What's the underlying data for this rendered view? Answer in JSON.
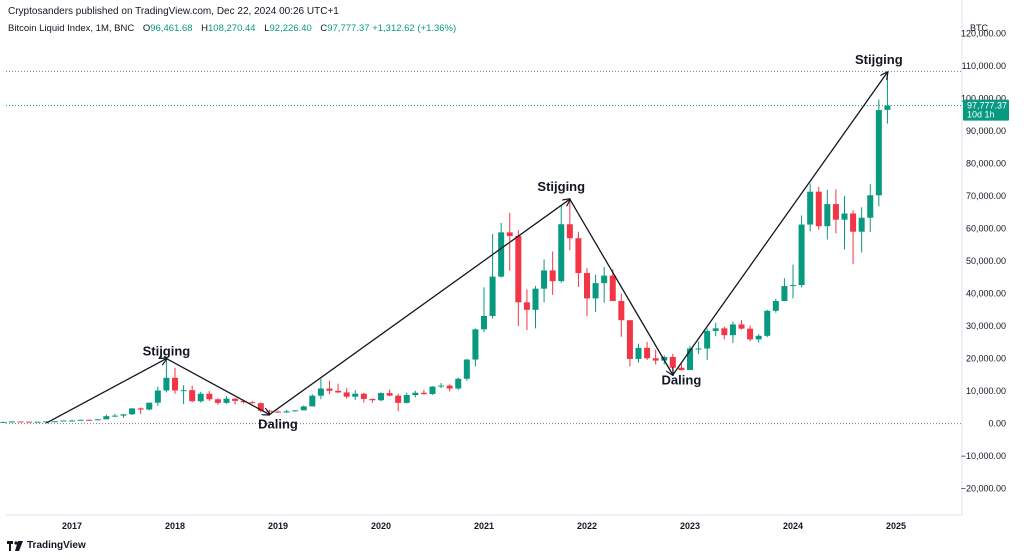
{
  "header": {
    "published": "Cryptosanders published on TradingView.com, Dec 22, 2024 00:26 UTC+1",
    "symbol": "Bitcoin Liquid Index, 1M, BNC",
    "open_label": "O",
    "open": "96,461.68",
    "high_label": "H",
    "high": "108,270.44",
    "low_label": "L",
    "low": "92,226.40",
    "close_label": "C",
    "close": "97,777.37",
    "change": "+1,312.62 (+1.36%)"
  },
  "currency": "BTC",
  "brand": "TradingView",
  "price_tag": {
    "price": "97,777.37",
    "countdown": "10d 1h"
  },
  "colors": {
    "up": "#089981",
    "down": "#f23645",
    "axis_text": "#131722",
    "grid": "#e0e3eb"
  },
  "chart_data": {
    "type": "candlestick",
    "y_axis": {
      "min": -25000,
      "max": 125000,
      "position": "right",
      "ticks": [
        -20000,
        -10000,
        0,
        10000,
        20000,
        30000,
        40000,
        50000,
        60000,
        70000,
        80000,
        90000,
        100000,
        110000,
        120000
      ],
      "tick_labels": [
        "−20,000.00",
        "−10,000.00",
        "0.00",
        "10,000.00",
        "20,000.00",
        "30,000.00",
        "40,000.00",
        "50,000.00",
        "60,000.00",
        "70,000.00",
        "80,000.00",
        "90,000.00",
        "100,000.00",
        "110,000.00",
        "120,000.00"
      ]
    },
    "x_axis": {
      "labels": [
        "2017",
        "2018",
        "2019",
        "2020",
        "2021",
        "2022",
        "2023",
        "2024",
        "2025"
      ],
      "years": [
        2017,
        2018,
        2019,
        2020,
        2021,
        2022,
        2023,
        2024,
        2025
      ]
    },
    "horizontal_lines": [
      {
        "value": 108270,
        "style": "dotted",
        "color": "#787b86"
      },
      {
        "value": 97777,
        "style": "dotted",
        "color": "#089981"
      },
      {
        "value": 0,
        "style": "dotted",
        "color": "#787b86"
      }
    ],
    "candles": [
      {
        "t": "2016-05",
        "o": 450,
        "h": 550,
        "l": 440,
        "c": 530
      },
      {
        "t": "2016-06",
        "o": 530,
        "h": 770,
        "l": 520,
        "c": 670
      },
      {
        "t": "2016-07",
        "o": 670,
        "h": 700,
        "l": 590,
        "c": 625
      },
      {
        "t": "2016-08",
        "o": 625,
        "h": 630,
        "l": 530,
        "c": 575
      },
      {
        "t": "2016-09",
        "o": 575,
        "h": 620,
        "l": 590,
        "c": 610
      },
      {
        "t": "2016-10",
        "o": 610,
        "h": 720,
        "l": 600,
        "c": 700
      },
      {
        "t": "2016-11",
        "o": 700,
        "h": 760,
        "l": 680,
        "c": 745
      },
      {
        "t": "2016-12",
        "o": 745,
        "h": 975,
        "l": 740,
        "c": 965
      },
      {
        "t": "2017-01",
        "o": 965,
        "h": 1150,
        "l": 750,
        "c": 970
      },
      {
        "t": "2017-02",
        "o": 970,
        "h": 1200,
        "l": 930,
        "c": 1190
      },
      {
        "t": "2017-03",
        "o": 1190,
        "h": 1290,
        "l": 890,
        "c": 1080
      },
      {
        "t": "2017-04",
        "o": 1080,
        "h": 1350,
        "l": 1070,
        "c": 1350
      },
      {
        "t": "2017-05",
        "o": 1350,
        "h": 2780,
        "l": 1340,
        "c": 2300
      },
      {
        "t": "2017-06",
        "o": 2300,
        "h": 3000,
        "l": 2100,
        "c": 2470
      },
      {
        "t": "2017-07",
        "o": 2470,
        "h": 2930,
        "l": 1800,
        "c": 2870
      },
      {
        "t": "2017-08",
        "o": 2870,
        "h": 4770,
        "l": 2670,
        "c": 4700
      },
      {
        "t": "2017-09",
        "o": 4700,
        "h": 4980,
        "l": 2970,
        "c": 4340
      },
      {
        "t": "2017-10",
        "o": 4340,
        "h": 6470,
        "l": 4100,
        "c": 6450
      },
      {
        "t": "2017-11",
        "o": 6450,
        "h": 11400,
        "l": 5500,
        "c": 10200
      },
      {
        "t": "2017-12",
        "o": 10200,
        "h": 19800,
        "l": 9600,
        "c": 14100
      },
      {
        "t": "2018-01",
        "o": 14100,
        "h": 17200,
        "l": 9200,
        "c": 10200
      },
      {
        "t": "2018-02",
        "o": 10200,
        "h": 11800,
        "l": 6000,
        "c": 10300
      },
      {
        "t": "2018-03",
        "o": 10300,
        "h": 11700,
        "l": 6600,
        "c": 6900
      },
      {
        "t": "2018-04",
        "o": 6900,
        "h": 9800,
        "l": 6500,
        "c": 9200
      },
      {
        "t": "2018-05",
        "o": 9200,
        "h": 10000,
        "l": 7000,
        "c": 7500
      },
      {
        "t": "2018-06",
        "o": 7500,
        "h": 7800,
        "l": 5800,
        "c": 6400
      },
      {
        "t": "2018-07",
        "o": 6400,
        "h": 8500,
        "l": 6100,
        "c": 7700
      },
      {
        "t": "2018-08",
        "o": 7700,
        "h": 7800,
        "l": 5900,
        "c": 7000
      },
      {
        "t": "2018-09",
        "o": 7000,
        "h": 7400,
        "l": 6200,
        "c": 6600
      },
      {
        "t": "2018-10",
        "o": 6600,
        "h": 7000,
        "l": 6200,
        "c": 6300
      },
      {
        "t": "2018-11",
        "o": 6300,
        "h": 6500,
        "l": 3500,
        "c": 4000
      },
      {
        "t": "2018-12",
        "o": 4000,
        "h": 4300,
        "l": 3100,
        "c": 3700
      },
      {
        "t": "2019-01",
        "o": 3700,
        "h": 4100,
        "l": 3400,
        "c": 3450
      },
      {
        "t": "2019-02",
        "o": 3450,
        "h": 4200,
        "l": 3350,
        "c": 3800
      },
      {
        "t": "2019-03",
        "o": 3800,
        "h": 4100,
        "l": 3700,
        "c": 4100
      },
      {
        "t": "2019-04",
        "o": 4100,
        "h": 5600,
        "l": 4100,
        "c": 5300
      },
      {
        "t": "2019-05",
        "o": 5300,
        "h": 9000,
        "l": 5300,
        "c": 8600
      },
      {
        "t": "2019-06",
        "o": 8600,
        "h": 13800,
        "l": 7500,
        "c": 10800
      },
      {
        "t": "2019-07",
        "o": 10800,
        "h": 13200,
        "l": 9100,
        "c": 10100
      },
      {
        "t": "2019-08",
        "o": 10100,
        "h": 12300,
        "l": 9400,
        "c": 9600
      },
      {
        "t": "2019-09",
        "o": 9600,
        "h": 10900,
        "l": 7700,
        "c": 8300
      },
      {
        "t": "2019-10",
        "o": 8300,
        "h": 10300,
        "l": 7300,
        "c": 9200
      },
      {
        "t": "2019-11",
        "o": 9200,
        "h": 9500,
        "l": 6500,
        "c": 7600
      },
      {
        "t": "2019-12",
        "o": 7600,
        "h": 7700,
        "l": 6400,
        "c": 7200
      },
      {
        "t": "2020-01",
        "o": 7200,
        "h": 9600,
        "l": 6900,
        "c": 9400
      },
      {
        "t": "2020-02",
        "o": 9400,
        "h": 10500,
        "l": 8500,
        "c": 8600
      },
      {
        "t": "2020-03",
        "o": 8600,
        "h": 9200,
        "l": 3800,
        "c": 6400
      },
      {
        "t": "2020-04",
        "o": 6400,
        "h": 9500,
        "l": 6200,
        "c": 8800
      },
      {
        "t": "2020-05",
        "o": 8800,
        "h": 10100,
        "l": 8100,
        "c": 9500
      },
      {
        "t": "2020-06",
        "o": 9500,
        "h": 10400,
        "l": 8900,
        "c": 9100
      },
      {
        "t": "2020-07",
        "o": 9100,
        "h": 11500,
        "l": 8900,
        "c": 11400
      },
      {
        "t": "2020-08",
        "o": 11400,
        "h": 12500,
        "l": 10900,
        "c": 11700
      },
      {
        "t": "2020-09",
        "o": 11700,
        "h": 12100,
        "l": 9900,
        "c": 10800
      },
      {
        "t": "2020-10",
        "o": 10800,
        "h": 14100,
        "l": 10400,
        "c": 13800
      },
      {
        "t": "2020-11",
        "o": 13800,
        "h": 19900,
        "l": 13200,
        "c": 19700
      },
      {
        "t": "2020-12",
        "o": 19700,
        "h": 29300,
        "l": 17600,
        "c": 29000
      },
      {
        "t": "2021-01",
        "o": 29000,
        "h": 41900,
        "l": 28100,
        "c": 33100
      },
      {
        "t": "2021-02",
        "o": 33100,
        "h": 58300,
        "l": 32300,
        "c": 45200
      },
      {
        "t": "2021-03",
        "o": 45200,
        "h": 61700,
        "l": 44900,
        "c": 58800
      },
      {
        "t": "2021-04",
        "o": 58800,
        "h": 64800,
        "l": 47000,
        "c": 57700
      },
      {
        "t": "2021-05",
        "o": 57700,
        "h": 59500,
        "l": 30000,
        "c": 37300
      },
      {
        "t": "2021-06",
        "o": 37300,
        "h": 41300,
        "l": 28800,
        "c": 35000
      },
      {
        "t": "2021-07",
        "o": 35000,
        "h": 42300,
        "l": 29300,
        "c": 41500
      },
      {
        "t": "2021-08",
        "o": 41500,
        "h": 50500,
        "l": 37300,
        "c": 47100
      },
      {
        "t": "2021-09",
        "o": 47100,
        "h": 52900,
        "l": 39600,
        "c": 43800
      },
      {
        "t": "2021-10",
        "o": 43800,
        "h": 66900,
        "l": 43300,
        "c": 61300
      },
      {
        "t": "2021-11",
        "o": 61300,
        "h": 69000,
        "l": 53300,
        "c": 57000
      },
      {
        "t": "2021-12",
        "o": 57000,
        "h": 59000,
        "l": 42000,
        "c": 46300
      },
      {
        "t": "2022-01",
        "o": 46300,
        "h": 47900,
        "l": 33000,
        "c": 38500
      },
      {
        "t": "2022-02",
        "o": 38500,
        "h": 45800,
        "l": 34300,
        "c": 43200
      },
      {
        "t": "2022-03",
        "o": 43200,
        "h": 48200,
        "l": 37200,
        "c": 45500
      },
      {
        "t": "2022-04",
        "o": 45500,
        "h": 47400,
        "l": 37700,
        "c": 37700
      },
      {
        "t": "2022-05",
        "o": 37700,
        "h": 40000,
        "l": 26700,
        "c": 31800
      },
      {
        "t": "2022-06",
        "o": 31800,
        "h": 31900,
        "l": 17600,
        "c": 19900
      },
      {
        "t": "2022-07",
        "o": 19900,
        "h": 24600,
        "l": 18800,
        "c": 23300
      },
      {
        "t": "2022-08",
        "o": 23300,
        "h": 25200,
        "l": 19600,
        "c": 20100
      },
      {
        "t": "2022-09",
        "o": 20100,
        "h": 22700,
        "l": 18200,
        "c": 19400
      },
      {
        "t": "2022-10",
        "o": 19400,
        "h": 21000,
        "l": 18200,
        "c": 20500
      },
      {
        "t": "2022-11",
        "o": 20500,
        "h": 21500,
        "l": 15500,
        "c": 17200
      },
      {
        "t": "2022-12",
        "o": 17200,
        "h": 18400,
        "l": 16300,
        "c": 16500
      },
      {
        "t": "2023-01",
        "o": 16500,
        "h": 23900,
        "l": 16500,
        "c": 23100
      },
      {
        "t": "2023-02",
        "o": 23100,
        "h": 25200,
        "l": 21400,
        "c": 23100
      },
      {
        "t": "2023-03",
        "o": 23100,
        "h": 29200,
        "l": 19600,
        "c": 28500
      },
      {
        "t": "2023-04",
        "o": 28500,
        "h": 31000,
        "l": 26900,
        "c": 29300
      },
      {
        "t": "2023-05",
        "o": 29300,
        "h": 29800,
        "l": 25900,
        "c": 27200
      },
      {
        "t": "2023-06",
        "o": 27200,
        "h": 31400,
        "l": 24800,
        "c": 30500
      },
      {
        "t": "2023-07",
        "o": 30500,
        "h": 31800,
        "l": 28900,
        "c": 29200
      },
      {
        "t": "2023-08",
        "o": 29200,
        "h": 30200,
        "l": 25300,
        "c": 25900
      },
      {
        "t": "2023-09",
        "o": 25900,
        "h": 27500,
        "l": 24900,
        "c": 27000
      },
      {
        "t": "2023-10",
        "o": 27000,
        "h": 35000,
        "l": 26600,
        "c": 34700
      },
      {
        "t": "2023-11",
        "o": 34700,
        "h": 38400,
        "l": 34100,
        "c": 37700
      },
      {
        "t": "2023-12",
        "o": 37700,
        "h": 44700,
        "l": 37600,
        "c": 42300
      },
      {
        "t": "2024-01",
        "o": 42300,
        "h": 48900,
        "l": 38500,
        "c": 42600
      },
      {
        "t": "2024-02",
        "o": 42600,
        "h": 64000,
        "l": 41900,
        "c": 61200
      },
      {
        "t": "2024-03",
        "o": 61200,
        "h": 73800,
        "l": 59100,
        "c": 71300
      },
      {
        "t": "2024-04",
        "o": 71300,
        "h": 72800,
        "l": 59600,
        "c": 60700
      },
      {
        "t": "2024-05",
        "o": 60700,
        "h": 71900,
        "l": 56600,
        "c": 67500
      },
      {
        "t": "2024-06",
        "o": 67500,
        "h": 72000,
        "l": 58500,
        "c": 62700
      },
      {
        "t": "2024-07",
        "o": 62700,
        "h": 70000,
        "l": 53500,
        "c": 64600
      },
      {
        "t": "2024-08",
        "o": 64600,
        "h": 65600,
        "l": 49000,
        "c": 59000
      },
      {
        "t": "2024-09",
        "o": 59000,
        "h": 66500,
        "l": 52600,
        "c": 63300
      },
      {
        "t": "2024-10",
        "o": 63300,
        "h": 73600,
        "l": 58900,
        "c": 70200
      },
      {
        "t": "2024-11",
        "o": 70200,
        "h": 99600,
        "l": 66800,
        "c": 96400
      },
      {
        "t": "2024-12",
        "o": 96461.68,
        "h": 108270.44,
        "l": 92226.4,
        "c": 97777.37
      }
    ],
    "annotations": [
      {
        "text": "Stijging",
        "x": "2017-12",
        "y": 21000
      },
      {
        "text": "Daling",
        "x": "2019-01",
        "y": -1500
      },
      {
        "text": "Stijging",
        "x": "2021-10",
        "y": 71500
      },
      {
        "text": "Daling",
        "x": "2022-12",
        "y": 12000
      },
      {
        "text": "Stijging",
        "x": "2024-11",
        "y": 110500
      }
    ],
    "trend_lines": [
      {
        "from": {
          "t": "2016-10",
          "v": 200
        },
        "to": {
          "t": "2017-12",
          "v": 20000
        }
      },
      {
        "from": {
          "t": "2017-12",
          "v": 20000
        },
        "to": {
          "t": "2018-12",
          "v": 2800
        }
      },
      {
        "from": {
          "t": "2018-12",
          "v": 2800
        },
        "to": {
          "t": "2021-11",
          "v": 69000
        }
      },
      {
        "from": {
          "t": "2021-11",
          "v": 69000
        },
        "to": {
          "t": "2022-11",
          "v": 15000
        }
      },
      {
        "from": {
          "t": "2022-11",
          "v": 15000
        },
        "to": {
          "t": "2024-12",
          "v": 108000
        }
      }
    ]
  }
}
